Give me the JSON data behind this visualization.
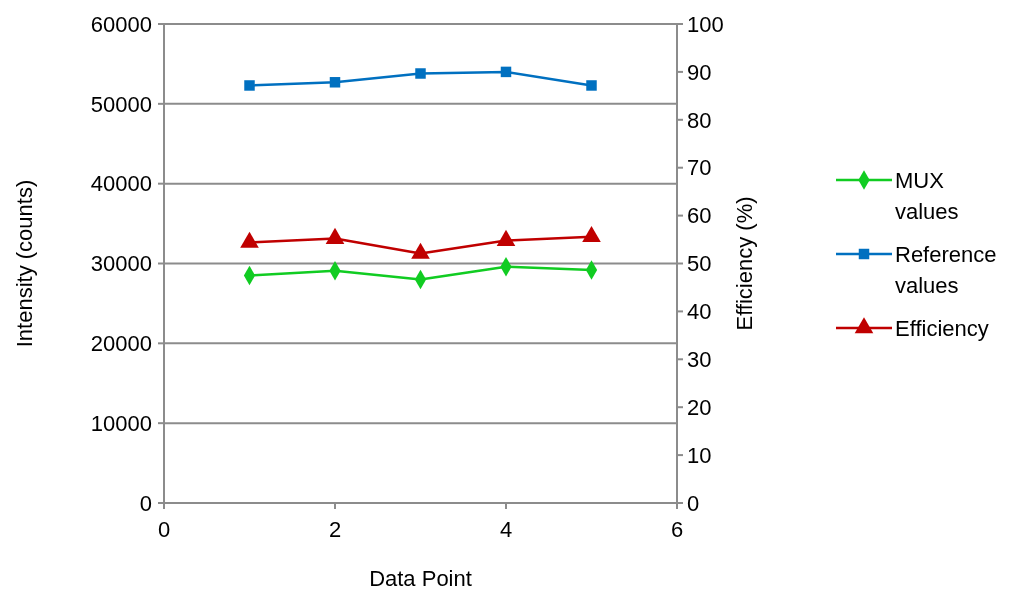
{
  "chart_data": {
    "type": "line",
    "xlabel": "Data Point",
    "ylabel": "Intensity (counts)",
    "y2label": "Efficiency (%)",
    "x": [
      1,
      2,
      3,
      4,
      5
    ],
    "series": [
      {
        "name": "MUX values",
        "color": "#11cc22",
        "marker": "diamond",
        "values": [
          28500,
          29100,
          28000,
          29600,
          29200
        ]
      },
      {
        "name": "Reference values",
        "color": "#0070c0",
        "marker": "square",
        "values": [
          52300,
          52700,
          53800,
          54000,
          52300
        ]
      },
      {
        "name": "Efficiency",
        "color": "#c00000",
        "marker": "triangle",
        "axis": "y2",
        "values": [
          54.4,
          55.2,
          52.1,
          54.8,
          55.6
        ]
      }
    ],
    "xlim": [
      0,
      6
    ],
    "xticks": [
      0,
      2,
      4,
      6
    ],
    "ylim": [
      0,
      60000
    ],
    "yticks": [
      0,
      10000,
      20000,
      30000,
      40000,
      50000,
      60000
    ],
    "y2lim": [
      0,
      100
    ],
    "y2ticks": [
      0,
      10,
      20,
      30,
      40,
      50,
      60,
      70,
      80,
      90,
      100
    ],
    "grid": "y",
    "legend": "right"
  }
}
